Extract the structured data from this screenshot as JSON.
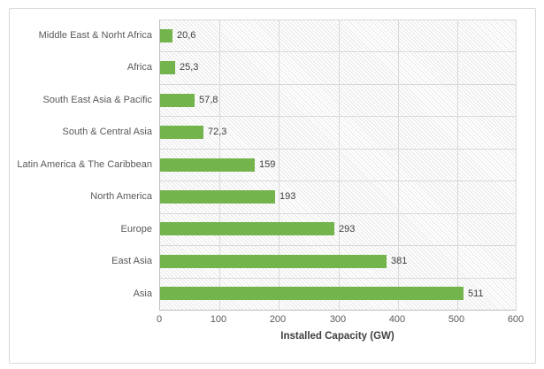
{
  "chart_data": {
    "type": "bar",
    "orientation": "horizontal",
    "categories": [
      "Middle East & Norht Africa",
      "Africa",
      "South East Asia & Pacific",
      "South & Central Asia",
      "Latin America & The Caribbean",
      "North America",
      "Europe",
      "East Asia",
      "Asia"
    ],
    "values": [
      20.6,
      25.3,
      57.8,
      72.3,
      159,
      193,
      293,
      381,
      511
    ],
    "value_labels": [
      "20,6",
      "25,3",
      "57,8",
      "72,3",
      "159",
      "193",
      "293",
      "381",
      "511"
    ],
    "title": "",
    "xlabel": "Installed Capacity (GW)",
    "ylabel": "",
    "xlim": [
      0,
      600
    ],
    "x_ticks": [
      0,
      100,
      200,
      300,
      400,
      500,
      600
    ],
    "grid": true,
    "legend": "none",
    "bar_color": "#74b44c",
    "gridline_color": "#d9d9d9",
    "axis_line_color": "#bfbfbf",
    "tick_text_color": "#595959",
    "data_label_color": "#404040",
    "plot_background": "white-with-light-diagonal-hatch",
    "frame_border_color": "#d9d9d9"
  }
}
